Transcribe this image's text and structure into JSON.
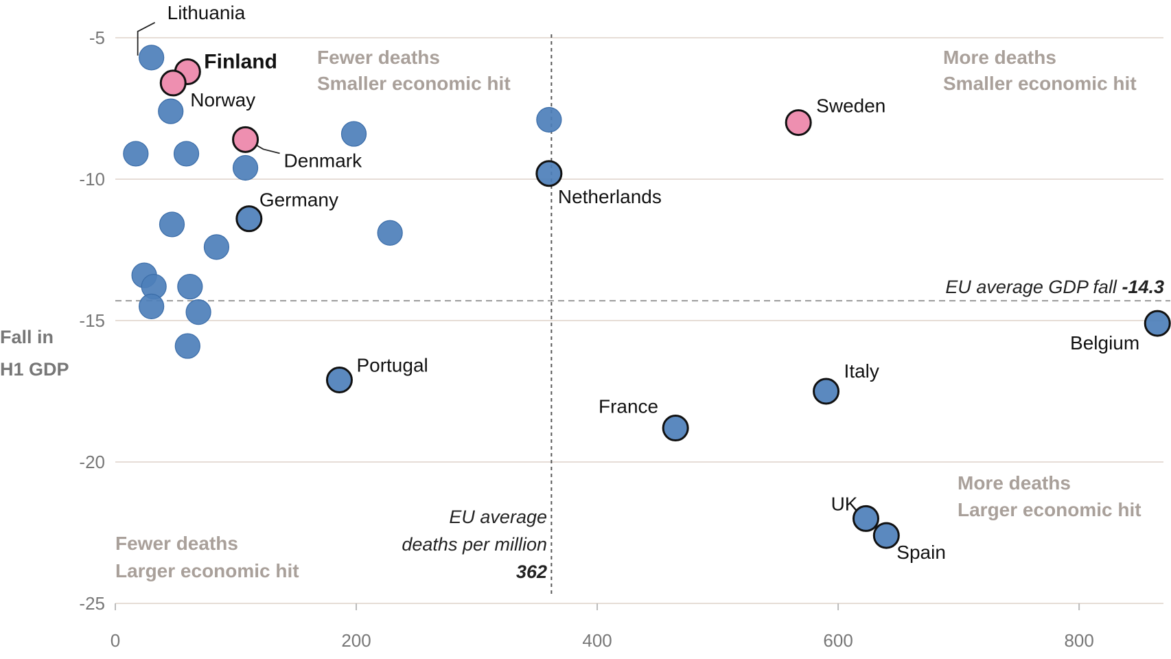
{
  "chart_data": {
    "type": "scatter",
    "xlabel": "",
    "ylabel": [
      "Fall in",
      "H1 GDP"
    ],
    "xlim": [
      0,
      870
    ],
    "ylim": [
      -25,
      -5
    ],
    "xticks": [
      0,
      200,
      400,
      600,
      800
    ],
    "yticks": [
      -5,
      -10,
      -15,
      -20,
      -25
    ],
    "grid": "horizontal",
    "colors": {
      "default": "#4d7fba",
      "nordic": "#ee8fb0",
      "grid": "#e6ddd6",
      "quadrant_text": "#a9a09a"
    },
    "points": [
      {
        "name": "Lithuania",
        "label": "Lithuania",
        "x": 30,
        "y": -5.7,
        "group": "default"
      },
      {
        "name": "Finland",
        "label": "Finland",
        "x": 60,
        "y": -6.2,
        "group": "nordic",
        "outline": true
      },
      {
        "name": "Norway",
        "label": "Norway",
        "x": 48,
        "y": -6.6,
        "group": "nordic",
        "outline": true
      },
      {
        "name": "unlabeled-1",
        "x": 46,
        "y": -7.6,
        "group": "default"
      },
      {
        "name": "unlabeled-2",
        "x": 17,
        "y": -9.1,
        "group": "default"
      },
      {
        "name": "unlabeled-3",
        "x": 59,
        "y": -9.1,
        "group": "default"
      },
      {
        "name": "Denmark",
        "label": "Denmark",
        "x": 108,
        "y": -8.6,
        "group": "nordic",
        "outline": true
      },
      {
        "name": "unlabeled-4",
        "x": 108,
        "y": -9.6,
        "group": "default"
      },
      {
        "name": "unlabeled-5",
        "x": 198,
        "y": -8.4,
        "group": "default"
      },
      {
        "name": "unlabeled-6",
        "x": 360,
        "y": -7.9,
        "group": "default"
      },
      {
        "name": "Netherlands",
        "label": "Netherlands",
        "x": 360,
        "y": -9.8,
        "group": "default",
        "outline": true
      },
      {
        "name": "Sweden",
        "label": "Sweden",
        "x": 567,
        "y": -8.0,
        "group": "nordic",
        "outline": true
      },
      {
        "name": "Germany",
        "label": "Germany",
        "x": 111,
        "y": -11.4,
        "group": "default",
        "outline": true
      },
      {
        "name": "unlabeled-7",
        "x": 47,
        "y": -11.6,
        "group": "default"
      },
      {
        "name": "unlabeled-8",
        "x": 84,
        "y": -12.4,
        "group": "default"
      },
      {
        "name": "unlabeled-9",
        "x": 228,
        "y": -11.9,
        "group": "default"
      },
      {
        "name": "unlabeled-10",
        "x": 24,
        "y": -13.4,
        "group": "default"
      },
      {
        "name": "unlabeled-11",
        "x": 32,
        "y": -13.8,
        "group": "default"
      },
      {
        "name": "unlabeled-12",
        "x": 62,
        "y": -13.8,
        "group": "default"
      },
      {
        "name": "unlabeled-13",
        "x": 30,
        "y": -14.5,
        "group": "default"
      },
      {
        "name": "unlabeled-14",
        "x": 69,
        "y": -14.7,
        "group": "default"
      },
      {
        "name": "unlabeled-15",
        "x": 60,
        "y": -15.9,
        "group": "default"
      },
      {
        "name": "Belgium",
        "label": "Belgium",
        "x": 865,
        "y": -15.1,
        "group": "default",
        "outline": true
      },
      {
        "name": "Portugal",
        "label": "Portugal",
        "x": 186,
        "y": -17.1,
        "group": "default",
        "outline": true
      },
      {
        "name": "Italy",
        "label": "Italy",
        "x": 590,
        "y": -17.5,
        "group": "default",
        "outline": true
      },
      {
        "name": "France",
        "label": "France",
        "x": 465,
        "y": -18.8,
        "group": "default",
        "outline": true
      },
      {
        "name": "UK",
        "label": "UK",
        "x": 623,
        "y": -22.0,
        "group": "default",
        "outline": true
      },
      {
        "name": "Spain",
        "label": "Spain",
        "x": 640,
        "y": -22.6,
        "group": "default",
        "outline": true
      }
    ],
    "reference_lines": {
      "eu_gdp": {
        "value": -14.3,
        "label": "EU average GDP fall",
        "value_label": "-14.3"
      },
      "eu_deaths": {
        "value": 362,
        "label_lines": [
          "EU average",
          "deaths per million"
        ],
        "value_label": "362"
      }
    },
    "quadrants": {
      "top_left": [
        "Fewer deaths",
        "Smaller economic hit"
      ],
      "top_right": [
        "More deaths",
        "Smaller economic hit"
      ],
      "bottom_left": [
        "Fewer deaths",
        "Larger economic hit"
      ],
      "bottom_right": [
        "More deaths",
        "Larger economic hit"
      ]
    }
  }
}
